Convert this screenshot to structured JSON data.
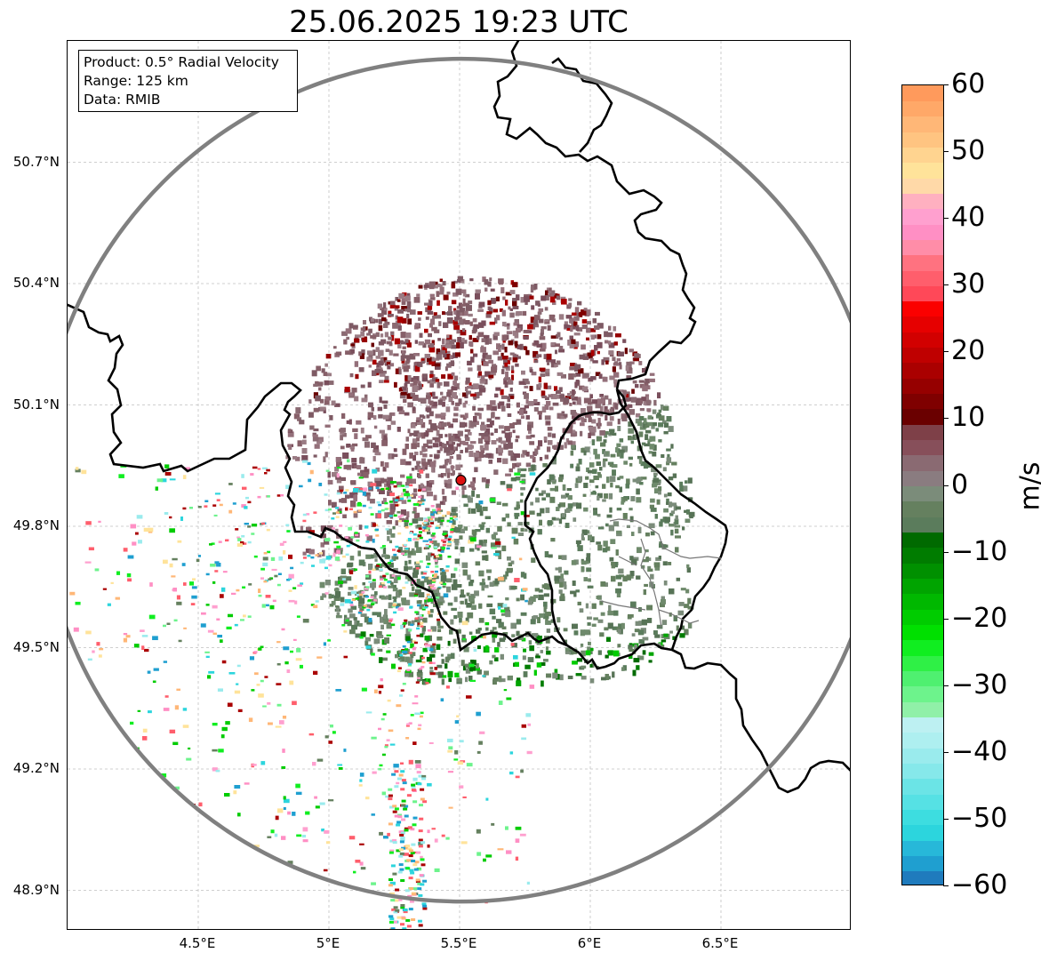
{
  "title": "25.06.2025 19:23 UTC",
  "info_box": {
    "product": "Product: 0.5° Radial Velocity",
    "range": "Range: 125 km",
    "source": "Data: RMIB"
  },
  "map": {
    "lat_labels": [
      "50.7°N",
      "50.4°N",
      "50.1°N",
      "49.8°N",
      "49.5°N",
      "49.2°N",
      "48.9°N"
    ],
    "lon_labels": [
      "4.5°E",
      "5°E",
      "5.5°E",
      "6°E",
      "6.5°E"
    ],
    "lat_values": [
      50.7,
      50.4,
      50.1,
      49.8,
      49.5,
      49.2,
      48.9
    ],
    "lon_values": [
      4.5,
      5.0,
      5.5,
      6.0,
      6.5
    ],
    "extent": {
      "lon_min": 4.0,
      "lon_max": 7.0,
      "lat_min": 48.8,
      "lat_max": 51.0
    },
    "radar_site": {
      "lon": 5.505,
      "lat": 49.914
    },
    "radar_range_km": 125,
    "colors": {
      "range_ring": "#808080",
      "radar_marker": "#dd1111",
      "borders": "#000000",
      "grid": "#c0c0c0"
    }
  },
  "colorbar": {
    "unit": "m/s",
    "vmin": -60,
    "vmax": 60,
    "ticks": [
      "60",
      "50",
      "40",
      "30",
      "20",
      "10",
      "0",
      "−10",
      "−20",
      "−30",
      "−40",
      "−50",
      "−60"
    ],
    "colors_bottom_to_top": [
      "#1f7bbd",
      "#1f9fd0",
      "#27b8d9",
      "#2cd5dd",
      "#3ddde0",
      "#56e1e4",
      "#6be4e6",
      "#86e8ea",
      "#9aebed",
      "#aeeff0",
      "#bdf0f2",
      "#90f0a8",
      "#6df38c",
      "#4ff070",
      "#2ff046",
      "#10ee20",
      "#00e000",
      "#00cc00",
      "#00b800",
      "#00a400",
      "#009000",
      "#007c00",
      "#006a00",
      "#5b7c5c",
      "#65805f",
      "#7b8c7a",
      "#8a7c80",
      "#8a6a72",
      "#874f5a",
      "#7e4048",
      "#6a0000",
      "#7f0000",
      "#960000",
      "#aa0000",
      "#bf0000",
      "#d20000",
      "#e60000",
      "#fb0000",
      "#ff4858",
      "#ff5e6c",
      "#ff7280",
      "#ff8da8",
      "#ff8fc4",
      "#ffa0cf",
      "#ffb0c0",
      "#ffd9a8",
      "#ffe39a",
      "#ffd490",
      "#ffc481",
      "#ffb777",
      "#ffa868",
      "#ff9a5c"
    ]
  }
}
